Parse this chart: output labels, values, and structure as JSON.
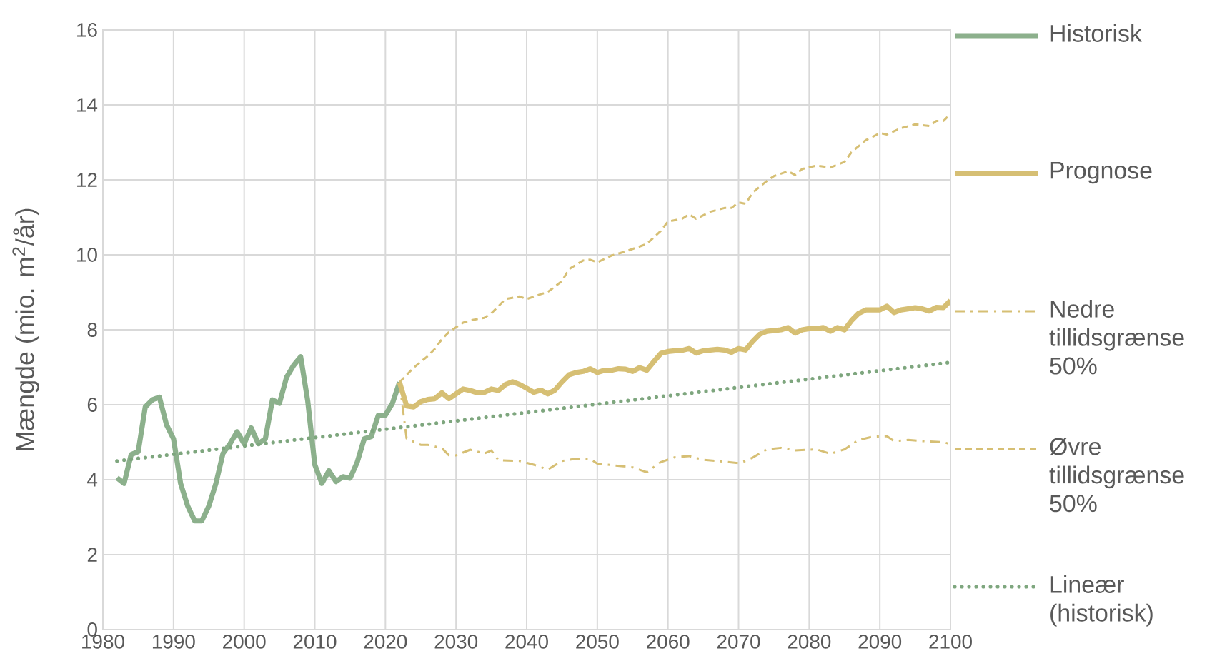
{
  "chart_data": {
    "type": "line",
    "ylabel": "Mængde (mio. m$^{2}$/år)",
    "xlim": [
      1980,
      2100
    ],
    "xticks": [
      1980,
      1990,
      2000,
      2010,
      2020,
      2030,
      2040,
      2050,
      2060,
      2070,
      2080,
      2090,
      2100
    ],
    "ylim": [
      0,
      16
    ],
    "yticks": [
      0,
      2,
      4,
      6,
      8,
      10,
      12,
      14,
      16
    ],
    "grid": true,
    "legend": "right",
    "series": [
      {
        "name": "Historisk",
        "color": "#8cb08c",
        "line_style": "solid",
        "x": [
          1982,
          1983,
          1984,
          1985,
          1986,
          1987,
          1988,
          1989,
          1990,
          1991,
          1992,
          1993,
          1994,
          1995,
          1996,
          1997,
          1998,
          1999,
          2000,
          2001,
          2002,
          2003,
          2004,
          2005,
          2006,
          2007,
          2008,
          2009,
          2010,
          2011,
          2012,
          2013,
          2014,
          2015,
          2016,
          2017,
          2018,
          2019,
          2020,
          2021,
          2022
        ],
        "values": [
          4.05,
          3.9,
          4.67,
          4.75,
          5.94,
          6.13,
          6.2,
          5.47,
          5.09,
          3.9,
          3.3,
          2.9,
          2.9,
          3.3,
          3.9,
          4.7,
          4.96,
          5.28,
          4.96,
          5.38,
          4.96,
          5.09,
          6.13,
          6.04,
          6.73,
          7.05,
          7.28,
          6.1,
          4.4,
          3.9,
          4.24,
          3.95,
          4.08,
          4.04,
          4.46,
          5.09,
          5.15,
          5.72,
          5.72,
          6.04,
          6.6
        ]
      },
      {
        "name": "Prognose",
        "color": "#d6bf74",
        "line_style": "solid",
        "x": [
          2022,
          2023,
          2024,
          2025,
          2026,
          2027,
          2028,
          2029,
          2030,
          2031,
          2032,
          2033,
          2034,
          2035,
          2036,
          2037,
          2038,
          2039,
          2040,
          2041,
          2042,
          2043,
          2044,
          2045,
          2046,
          2047,
          2048,
          2049,
          2050,
          2051,
          2052,
          2053,
          2054,
          2055,
          2056,
          2057,
          2058,
          2059,
          2060,
          2061,
          2062,
          2063,
          2064,
          2065,
          2066,
          2067,
          2068,
          2069,
          2070,
          2071,
          2072,
          2073,
          2074,
          2075,
          2076,
          2077,
          2078,
          2079,
          2080,
          2081,
          2082,
          2083,
          2084,
          2085,
          2086,
          2087,
          2088,
          2089,
          2090,
          2091,
          2092,
          2093,
          2094,
          2095,
          2096,
          2097,
          2098,
          2099,
          2100
        ],
        "values": [
          6.6,
          5.97,
          5.94,
          6.08,
          6.14,
          6.16,
          6.32,
          6.16,
          6.29,
          6.42,
          6.38,
          6.32,
          6.33,
          6.42,
          6.38,
          6.54,
          6.61,
          6.54,
          6.44,
          6.33,
          6.39,
          6.29,
          6.39,
          6.61,
          6.8,
          6.86,
          6.89,
          6.96,
          6.86,
          6.92,
          6.92,
          6.96,
          6.95,
          6.89,
          6.99,
          6.92,
          7.15,
          7.37,
          7.42,
          7.44,
          7.45,
          7.5,
          7.38,
          7.44,
          7.46,
          7.48,
          7.46,
          7.4,
          7.5,
          7.46,
          7.69,
          7.88,
          7.96,
          7.98,
          8.0,
          8.06,
          7.91,
          8.0,
          8.03,
          8.03,
          8.06,
          7.96,
          8.06,
          8.0,
          8.25,
          8.44,
          8.53,
          8.53,
          8.53,
          8.63,
          8.46,
          8.53,
          8.56,
          8.59,
          8.56,
          8.5,
          8.6,
          8.59,
          8.78
        ]
      },
      {
        "name": "Nedre tillidsgrænse 50%",
        "color": "#d6bf74",
        "line_style": "dashdot",
        "x": [
          2022,
          2023,
          2025,
          2026,
          2028,
          2029,
          2030,
          2032,
          2034,
          2035,
          2036,
          2039,
          2041,
          2043,
          2045,
          2047,
          2049,
          2050,
          2052,
          2055,
          2057,
          2059,
          2061,
          2063,
          2065,
          2067,
          2070,
          2071,
          2072,
          2074,
          2076,
          2078,
          2081,
          2083,
          2085,
          2087,
          2089,
          2091,
          2092,
          2094,
          2096,
          2099,
          2100
        ],
        "values": [
          6.6,
          5.1,
          4.93,
          4.93,
          4.84,
          4.65,
          4.65,
          4.8,
          4.7,
          4.78,
          4.52,
          4.5,
          4.4,
          4.27,
          4.5,
          4.56,
          4.55,
          4.43,
          4.39,
          4.33,
          4.2,
          4.47,
          4.6,
          4.63,
          4.53,
          4.5,
          4.44,
          4.5,
          4.59,
          4.81,
          4.85,
          4.78,
          4.81,
          4.69,
          4.81,
          5.06,
          5.15,
          5.16,
          5.03,
          5.06,
          5.03,
          5.0,
          4.95
        ]
      },
      {
        "name": "Øvre tillidsgrænse 50%",
        "color": "#d6bf74",
        "line_style": "dashed",
        "x": [
          2022,
          2024,
          2026,
          2027,
          2028,
          2029,
          2031,
          2032,
          2034,
          2035,
          2037,
          2039,
          2040,
          2042,
          2043,
          2045,
          2046,
          2048,
          2049,
          2050,
          2052,
          2054,
          2057,
          2059,
          2060,
          2062,
          2063,
          2064,
          2066,
          2068,
          2069,
          2070,
          2071,
          2072,
          2074,
          2075,
          2077,
          2078,
          2079,
          2081,
          2083,
          2085,
          2086,
          2088,
          2089,
          2090,
          2091,
          2093,
          2095,
          2097,
          2098,
          2099,
          2100
        ],
        "values": [
          6.6,
          6.99,
          7.3,
          7.49,
          7.75,
          7.94,
          8.19,
          8.25,
          8.32,
          8.44,
          8.82,
          8.89,
          8.82,
          8.95,
          9.01,
          9.3,
          9.62,
          9.85,
          9.87,
          9.8,
          9.98,
          10.09,
          10.29,
          10.64,
          10.89,
          10.96,
          11.08,
          10.96,
          11.15,
          11.25,
          11.25,
          11.4,
          11.36,
          11.66,
          11.97,
          12.1,
          12.23,
          12.13,
          12.29,
          12.38,
          12.33,
          12.48,
          12.74,
          13.06,
          13.15,
          13.25,
          13.21,
          13.38,
          13.48,
          13.44,
          13.57,
          13.57,
          13.76
        ]
      },
      {
        "name": "Lineær (historisk)",
        "color": "#7ea67e",
        "line_style": "dotted",
        "x": [
          1982,
          2100
        ],
        "values": [
          4.5,
          7.13
        ]
      }
    ]
  }
}
